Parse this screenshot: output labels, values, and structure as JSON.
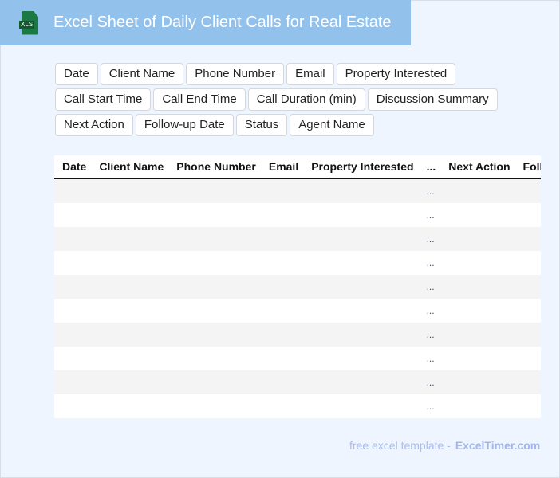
{
  "header": {
    "title": "Excel Sheet of Daily Client Calls for Real Estate",
    "icon": "xls-file-icon",
    "icon_label": "XLS"
  },
  "tags": [
    "Date",
    "Client Name",
    "Phone Number",
    "Email",
    "Property Interested",
    "Call Start Time",
    "Call End Time",
    "Call Duration (min)",
    "Discussion Summary",
    "Next Action",
    "Follow-up Date",
    "Status",
    "Agent Name"
  ],
  "table": {
    "columns": [
      "Date",
      "Client Name",
      "Phone Number",
      "Email",
      "Property Interested",
      "...",
      "Next Action",
      "Follow-up Date"
    ],
    "ellipsis": "...",
    "row_count": 10
  },
  "footer": {
    "text": "free excel template -",
    "brand": "ExcelTimer.com"
  }
}
